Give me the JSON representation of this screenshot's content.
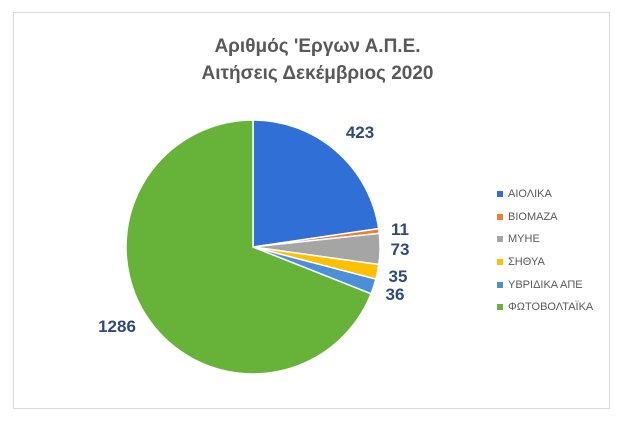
{
  "chart_data": {
    "type": "pie",
    "title": "Αριθμός 'Εργων Α.Π.Ε.",
    "subtitle": "Αιτήσεις Δεκέμβριος 2020",
    "categories": [
      "ΑΙΟΛΙΚΑ",
      "ΒΙΟΜΑΖΑ",
      "ΜΥΗΕ",
      "ΣΗΘΥΑ",
      "ΥΒΡΙΔΙΚΑ ΑΠΕ",
      "ΦΩΤΟΒΟΛΤΑΪΚΑ"
    ],
    "values": [
      423,
      11,
      73,
      35,
      36,
      1286
    ],
    "colors": [
      "#2f6fd6",
      "#ed7d31",
      "#a5a5a5",
      "#ffc000",
      "#4a8fd8",
      "#67b33a"
    ],
    "data_labels": [
      "423",
      "11",
      "73",
      "35",
      "36",
      "1286"
    ],
    "legend_position": "right"
  }
}
